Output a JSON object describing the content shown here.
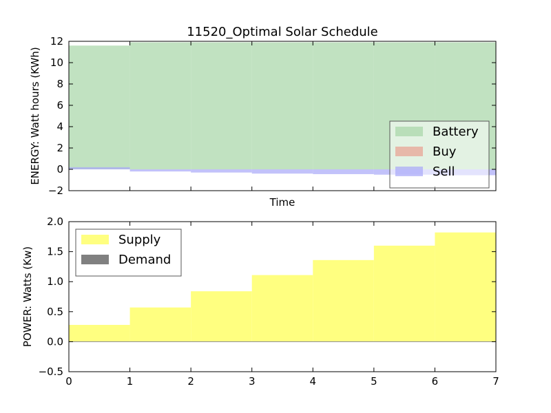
{
  "chart_data": [
    {
      "type": "area",
      "title": "11520_Optimal Solar Schedule",
      "xlabel": "Time",
      "ylabel": "ENERGY: Watt hours (KWh)",
      "xlim": [
        0,
        7
      ],
      "ylim": [
        -2,
        12
      ],
      "yticks": [
        -2,
        0,
        2,
        4,
        6,
        8,
        10,
        12
      ],
      "show_xtick_labels": false,
      "step": "post",
      "x": [
        0,
        1,
        2,
        3,
        4,
        5,
        6
      ],
      "series": [
        {
          "name": "Battery",
          "color": "#a6d5a6",
          "alpha": 0.7,
          "values": [
            11.6,
            11.9,
            11.9,
            11.9,
            11.9,
            11.9,
            11.9
          ]
        },
        {
          "name": "Buy",
          "color": "#e8a090",
          "alpha": 0.7,
          "values": [
            0,
            0,
            0,
            0,
            0,
            0,
            0
          ]
        },
        {
          "name": "Sell",
          "color": "#a8a8f8",
          "alpha": 0.7,
          "values": [
            0.2,
            -0.2,
            -0.3,
            -0.4,
            -0.45,
            -0.5,
            -0.55
          ]
        }
      ],
      "legend": {
        "placement": "lower-right",
        "entries": [
          "Battery",
          "Buy",
          "Sell"
        ]
      }
    },
    {
      "type": "area",
      "title": "",
      "xlabel": "",
      "ylabel": "POWER: Watts (Kw)",
      "xlim": [
        0,
        7
      ],
      "ylim": [
        -0.5,
        2.0
      ],
      "xticks": [
        0,
        1,
        2,
        3,
        4,
        5,
        6,
        7
      ],
      "yticks": [
        -0.5,
        0.0,
        0.5,
        1.0,
        1.5,
        2.0
      ],
      "step": "post",
      "x": [
        0,
        1,
        2,
        3,
        4,
        5,
        6
      ],
      "series": [
        {
          "name": "Supply",
          "color": "#ffff80",
          "values": [
            0.28,
            0.57,
            0.84,
            1.11,
            1.36,
            1.6,
            1.82
          ]
        },
        {
          "name": "Demand",
          "color": "#808080",
          "values": [
            0,
            0,
            0,
            0,
            0,
            0,
            0
          ]
        }
      ],
      "legend": {
        "placement": "upper-left",
        "entries": [
          "Supply",
          "Demand"
        ]
      }
    }
  ]
}
